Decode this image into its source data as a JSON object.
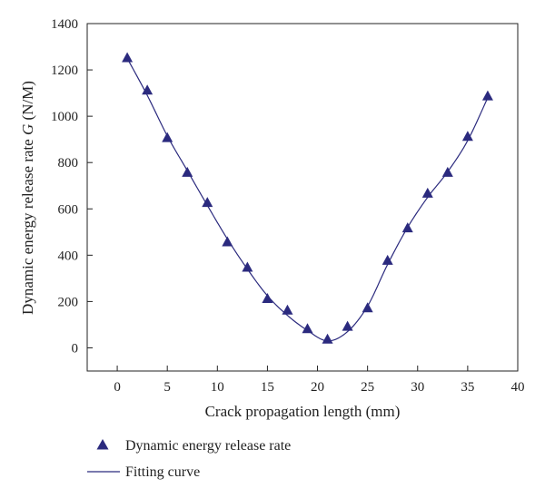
{
  "chart_data": {
    "type": "scatter",
    "xlabel": "Crack propagation length (mm)",
    "ylabel_prefix": "Dynamic energy release rate ",
    "ylabel_symbol": "G",
    "ylabel_suffix": " (N/M)",
    "xlim": [
      -3,
      40
    ],
    "ylim": [
      -100,
      1400
    ],
    "xticks": [
      0,
      5,
      10,
      15,
      20,
      25,
      30,
      35,
      40
    ],
    "yticks": [
      0,
      200,
      400,
      600,
      800,
      1000,
      1200,
      1400
    ],
    "legend_position": "bottom-left below plot",
    "series": [
      {
        "name": "Dynamic energy release rate",
        "kind": "marker",
        "marker": "triangle",
        "color": "#2b2a7e",
        "x": [
          1,
          3,
          5,
          7,
          9,
          11,
          13,
          15,
          17,
          19,
          21,
          23,
          25,
          27,
          29,
          31,
          33,
          35,
          37
        ],
        "y": [
          1250,
          1110,
          905,
          755,
          625,
          455,
          345,
          210,
          160,
          80,
          35,
          90,
          170,
          375,
          515,
          665,
          755,
          910,
          1085
        ]
      },
      {
        "name": "Fitting curve",
        "kind": "line",
        "color": "#2b2a7e",
        "x": [
          1,
          3,
          5,
          7,
          9,
          11,
          13,
          15,
          17,
          19,
          21,
          23,
          25,
          27,
          29,
          31,
          33,
          35,
          37
        ],
        "y": [
          1250,
          1090,
          915,
          765,
          615,
          470,
          340,
          225,
          140,
          75,
          30,
          70,
          180,
          360,
          520,
          650,
          760,
          895,
          1080
        ]
      }
    ]
  }
}
